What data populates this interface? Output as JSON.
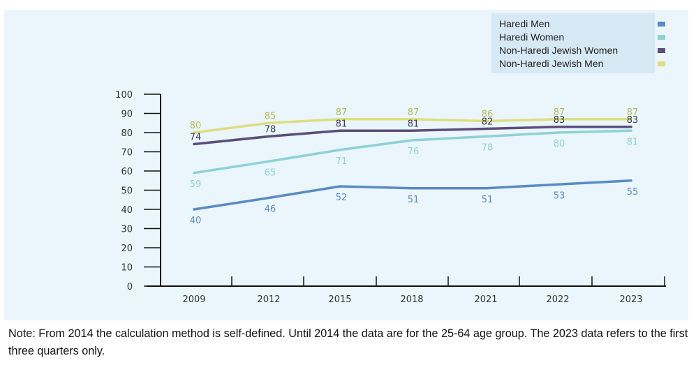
{
  "chart_data": {
    "type": "line",
    "title": "",
    "xlabel": "",
    "ylabel": "",
    "categories": [
      "2009",
      "2012",
      "2015",
      "2018",
      "2021",
      "2022",
      "2023"
    ],
    "ylim": [
      0,
      100
    ],
    "yticks": [
      0,
      10,
      20,
      30,
      40,
      50,
      60,
      70,
      80,
      90,
      100
    ],
    "grid": false,
    "legend_position": "top-right",
    "series": [
      {
        "name": "Haredi Men",
        "color": "#5b8ac4",
        "values": [
          40,
          46,
          52,
          51,
          51,
          53,
          55
        ]
      },
      {
        "name": "Haredi Women",
        "color": "#8fd1d6",
        "values": [
          59,
          65,
          71,
          76,
          78,
          80,
          81
        ]
      },
      {
        "name": "Non-Haredi Jewish Women",
        "color": "#5c4d7d",
        "values": [
          74,
          78,
          81,
          81,
          82,
          83,
          83
        ]
      },
      {
        "name": "Non-Haredi Jewish Men",
        "color": "#dede7f",
        "values": [
          80,
          85,
          87,
          87,
          86,
          87,
          87
        ]
      }
    ]
  },
  "legend": {
    "items": [
      {
        "label": "Haredi Men",
        "color": "#5b8ac4"
      },
      {
        "label": "Haredi Women",
        "color": "#8fd1d6"
      },
      {
        "label": "Non-Haredi Jewish Women",
        "color": "#5c4d7d"
      },
      {
        "label": "Non-Haredi Jewish Men",
        "color": "#dede7f"
      }
    ]
  },
  "note": {
    "text": "Note: From 2014 the calculation method is self-defined. Until 2014 the data are for the 25-64 age group. The 2023 data refers to the first three quarters only."
  }
}
